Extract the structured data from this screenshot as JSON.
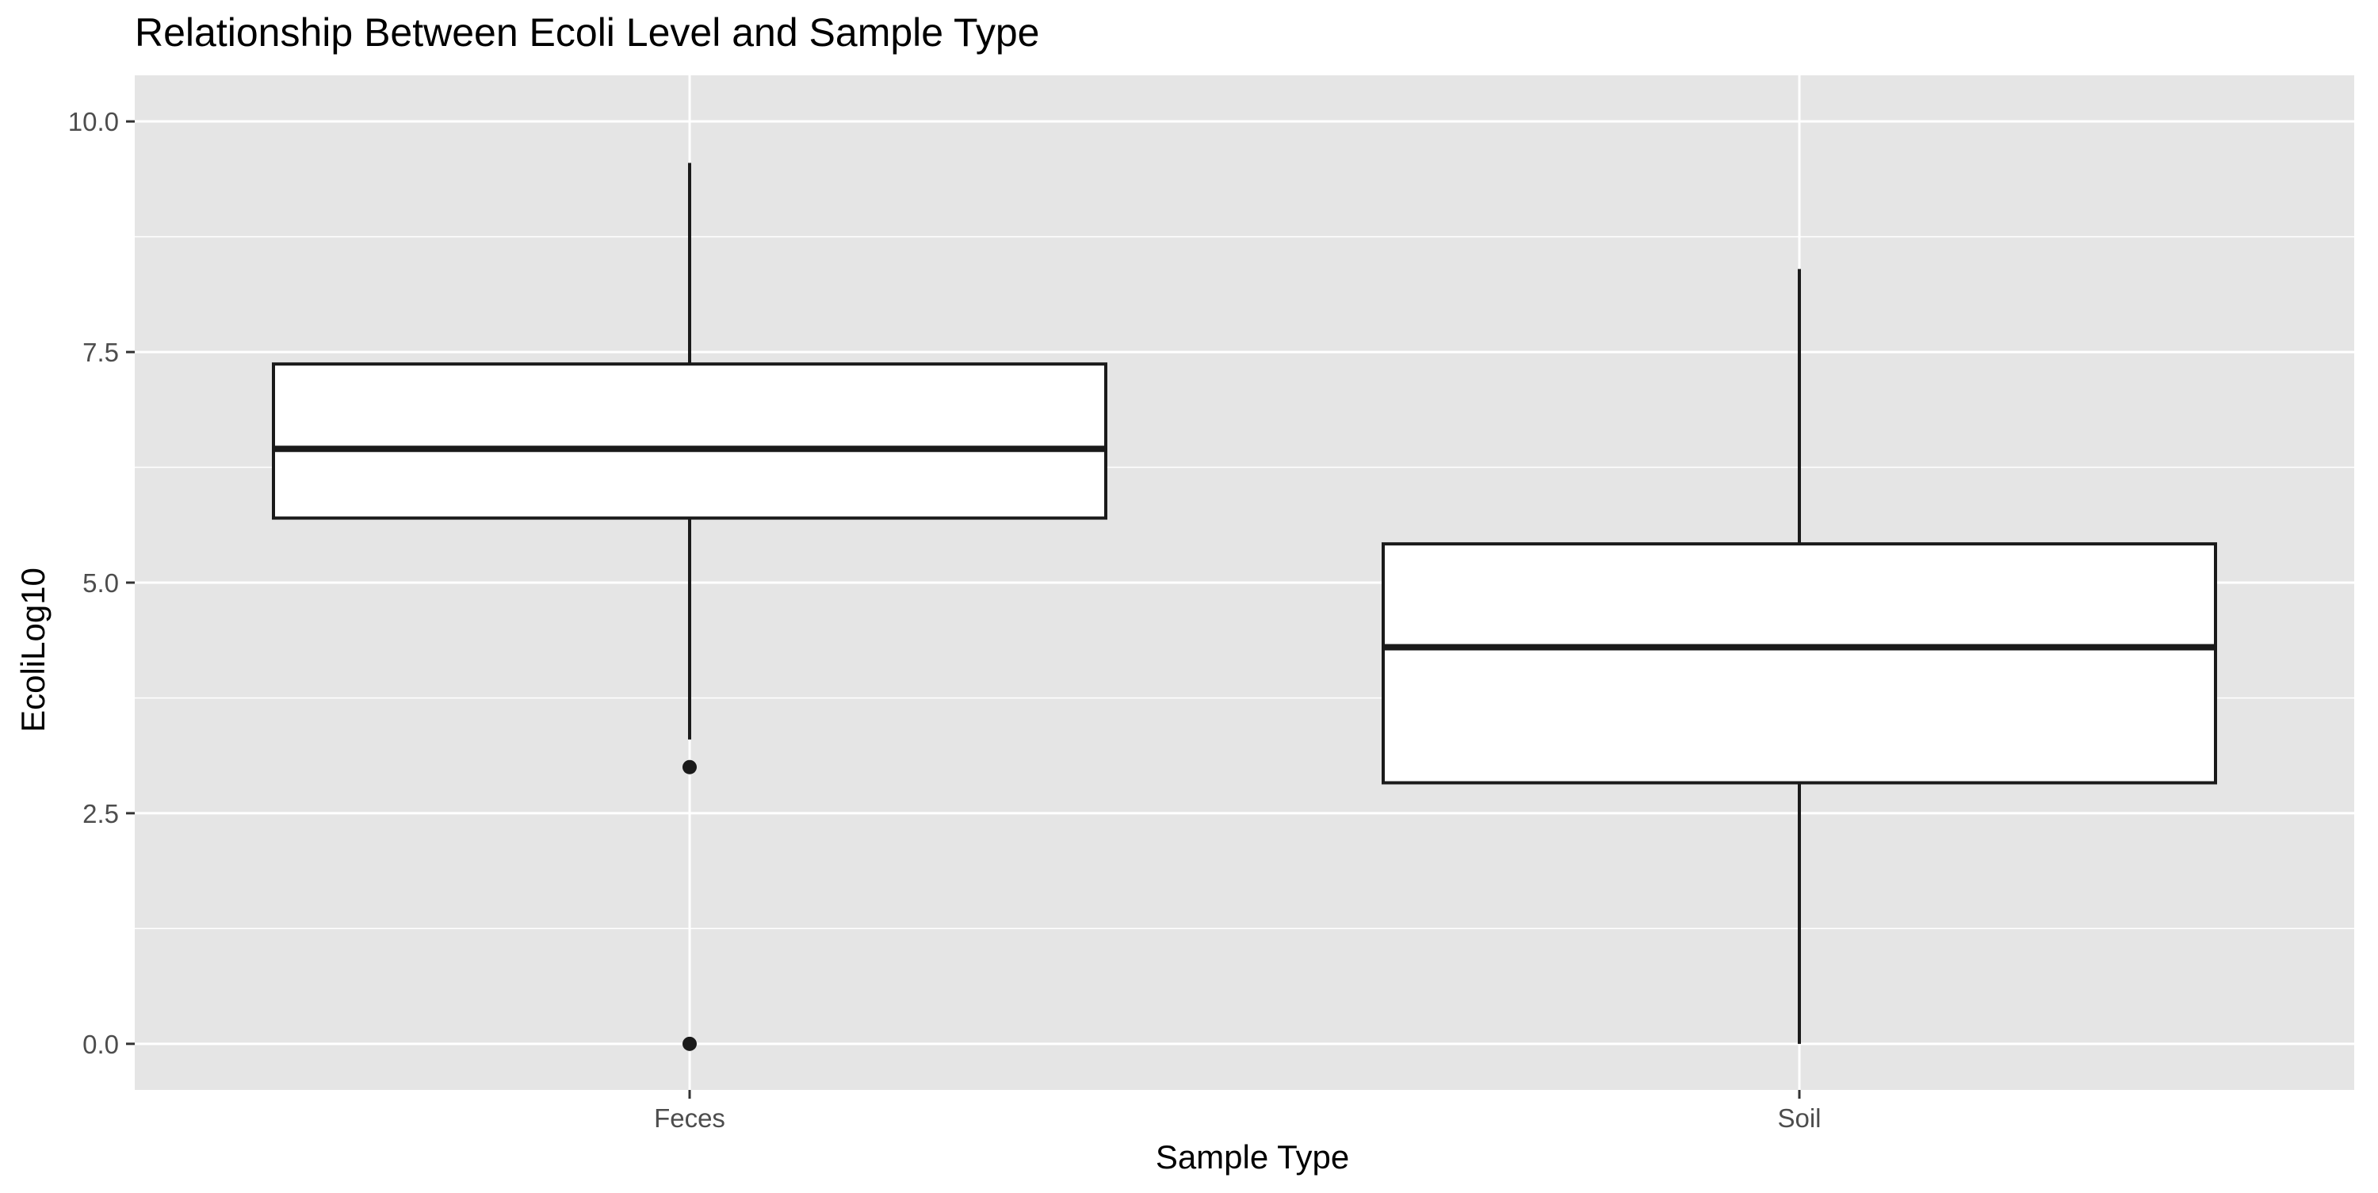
{
  "chart_data": {
    "type": "boxplot",
    "title": "Relationship Between Ecoli Level and Sample Type",
    "xlabel": "Sample Type",
    "ylabel": "EcoliLog10",
    "categories": [
      "Feces",
      "Soil"
    ],
    "ylim": [
      -0.5,
      10.5
    ],
    "yticks": [
      0.0,
      2.5,
      5.0,
      7.5,
      10.0
    ],
    "ytick_labels": [
      "0.0",
      "2.5",
      "5.0",
      "7.5",
      "10.0"
    ],
    "grid": true,
    "legend": "none",
    "boxes": [
      {
        "category": "Feces",
        "whisker_low": 3.3,
        "q1": 5.7,
        "median": 6.45,
        "q3": 7.37,
        "whisker_high": 9.55,
        "outliers": [
          3.0,
          0.0
        ]
      },
      {
        "category": "Soil",
        "whisker_low": 0.0,
        "q1": 2.83,
        "median": 4.3,
        "q3": 5.42,
        "whisker_high": 8.4,
        "outliers": []
      }
    ],
    "colors": {
      "panel_background": "#e5e5e5",
      "grid": "#ffffff",
      "box_fill": "#ffffff",
      "box_line": "#1a1a1a",
      "tick_label": "#4d4d4d",
      "tick_mark": "#333333",
      "text": "#000000"
    }
  }
}
